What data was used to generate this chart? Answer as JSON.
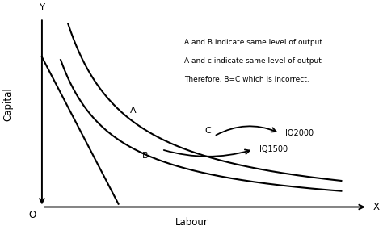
{
  "bg_color": "#ffffff",
  "text_color": "#000000",
  "annotation_lines": [
    "A and B indicate same level of output",
    "A and c indicate same level of output",
    "Therefore, B=C which is incorrect."
  ],
  "font_size": 7.0,
  "axis_label_fontsize": 8.5,
  "xlim": [
    0,
    10
  ],
  "ylim": [
    0,
    10
  ],
  "xlabel": "Labour",
  "ylabel": "Capital",
  "point_A": [
    3.2,
    5.2
  ],
  "point_B": [
    3.7,
    3.5
  ],
  "point_C": [
    5.2,
    3.9
  ],
  "label_IQ2000": [
    7.5,
    4.1
  ],
  "label_IQ1500": [
    6.8,
    3.3
  ],
  "k_iq2000": 16.0,
  "k_iq1500": 11.5,
  "isocost_x0": 1.8,
  "isocost_x1": 4.5,
  "isocost_slope": -3.5,
  "isocost_intercept": 11.3
}
